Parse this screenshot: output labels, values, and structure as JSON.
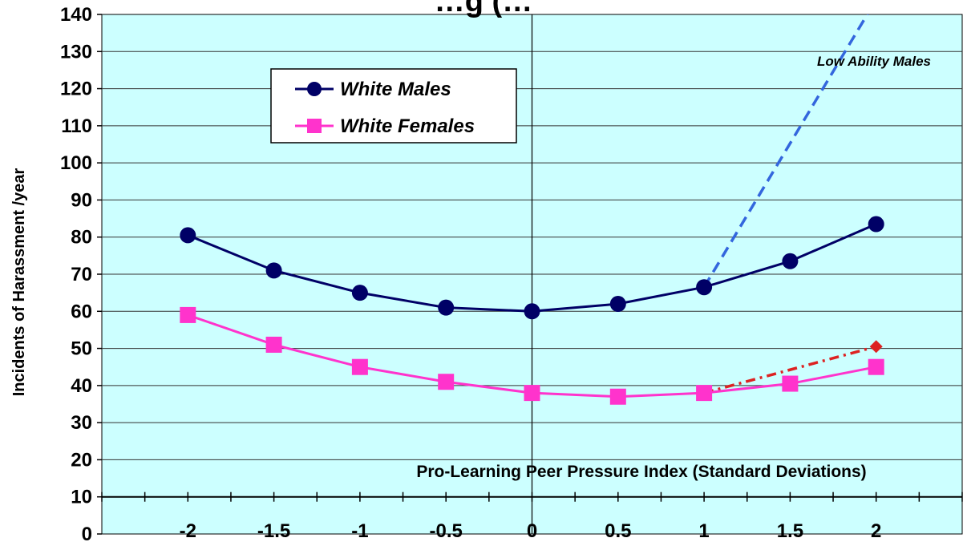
{
  "chart_data": {
    "type": "line",
    "title": "…g (…",
    "xlabel": "Pro-Learning Peer Pressure Index (Standard Deviations)",
    "ylabel": "Incidents of Harassment /year",
    "x": [
      -2,
      -1.5,
      -1,
      -0.5,
      0,
      0.5,
      1,
      1.5,
      2
    ],
    "x_tick_labels": [
      "-2",
      "-1.5",
      "-1",
      "-0.5",
      "0",
      "0.5",
      "1",
      "1.5",
      "2"
    ],
    "y_ticks": [
      0,
      10,
      20,
      30,
      40,
      50,
      60,
      70,
      80,
      90,
      100,
      110,
      120,
      130,
      140
    ],
    "ylim": [
      0,
      140
    ],
    "xlim": [
      -2.5,
      2.5
    ],
    "grid": true,
    "plot_background": "#ccffff",
    "legend_placement": "upper-left",
    "series": [
      {
        "name": "White Males",
        "marker": "circle",
        "color": "#000066",
        "values": [
          80.5,
          71,
          65,
          61,
          60,
          62,
          66.5,
          73.5,
          83.5
        ]
      },
      {
        "name": "White Females",
        "marker": "square",
        "color": "#ff33cc",
        "values": [
          59,
          51,
          45,
          41,
          38,
          37,
          38,
          40.5,
          45
        ]
      }
    ],
    "extra_lines": [
      {
        "label": "Low Ability Males",
        "style": "dashed",
        "color": "#3366dd",
        "x": [
          1,
          2
        ],
        "values": [
          66.5,
          144
        ]
      },
      {
        "label": "",
        "style": "dash-dot",
        "color": "#dd2222",
        "x": [
          1,
          2
        ],
        "values": [
          38,
          50.5
        ]
      }
    ],
    "annotations": [
      {
        "text": "Low Ability Males"
      }
    ]
  }
}
